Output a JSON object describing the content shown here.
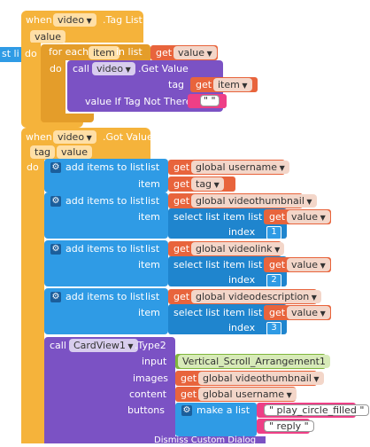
{
  "left_edge": {
    "label": "st  li"
  },
  "block1": {
    "when": "when",
    "component": "video",
    "event": ".Tag List",
    "param": "value",
    "do": "do",
    "foreach": "for each",
    "item_var": "item",
    "in_list": "in list",
    "get": "get",
    "get_value": "value",
    "do2": "do",
    "call": "call",
    "call_component": "video",
    "method": ".Get Value",
    "tag_label": "tag",
    "get_item": "item",
    "if_not_there": "value If Tag Not There",
    "empty_string": "\" \""
  },
  "block2": {
    "when": "when",
    "component": "video",
    "event": ".Got Value",
    "param_tag": "tag",
    "param_value": "value",
    "do": "do",
    "add_items": "add items to list",
    "list": "list",
    "item": "item",
    "get": "get",
    "select_item": "select list item  list",
    "index": "index",
    "rows": [
      {
        "list_var": "global username",
        "item_var": "tag",
        "index": ""
      },
      {
        "list_var": "global videothumbnail",
        "item_var": "value",
        "index": "1"
      },
      {
        "list_var": "global videolink",
        "item_var": "value",
        "index": "2"
      },
      {
        "list_var": "global videodescription",
        "item_var": "value",
        "index": "3"
      }
    ],
    "call": "call",
    "card_component": "CardView1",
    "card_method": ".Type2",
    "input_label": "input",
    "input_value": "Vertical_Scroll_Arrangement1",
    "images_label": "images",
    "images_var": "global videothumbnail",
    "content_label": "content",
    "content_var": "global username",
    "buttons_label": "buttons",
    "make_list": "make a list",
    "btn1": "\" play_circle_filled \"",
    "btn2": "\" reply \"",
    "bottom_text": "Dismiss Custom Dialog"
  }
}
